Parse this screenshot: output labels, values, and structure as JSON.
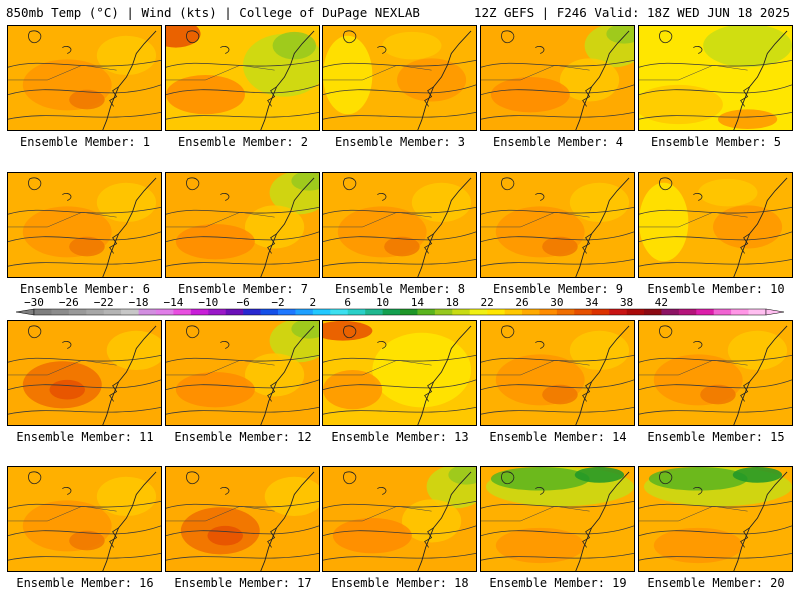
{
  "header": {
    "left": "850mb Temp (°C) | Wind (kts) | College of DuPage NEXLAB",
    "right": "12Z GEFS | F246 Valid: 18Z WED JUN 18 2025"
  },
  "panel_label_prefix": "Ensemble Member: ",
  "members": [
    {
      "n": "1",
      "scheme": "orange"
    },
    {
      "n": "2",
      "scheme": "ne-green-nw-red"
    },
    {
      "n": "3",
      "scheme": "orange-yellow"
    },
    {
      "n": "4",
      "scheme": "ne-green"
    },
    {
      "n": "5",
      "scheme": "yellow-green"
    },
    {
      "n": "6",
      "scheme": "orange"
    },
    {
      "n": "7",
      "scheme": "ne-green"
    },
    {
      "n": "8",
      "scheme": "orange"
    },
    {
      "n": "9",
      "scheme": "orange"
    },
    {
      "n": "10",
      "scheme": "orange-yellow"
    },
    {
      "n": "11",
      "scheme": "red-center"
    },
    {
      "n": "12",
      "scheme": "ne-green"
    },
    {
      "n": "13",
      "scheme": "yellow-east"
    },
    {
      "n": "14",
      "scheme": "orange"
    },
    {
      "n": "15",
      "scheme": "orange"
    },
    {
      "n": "16",
      "scheme": "orange"
    },
    {
      "n": "17",
      "scheme": "red-center"
    },
    {
      "n": "18",
      "scheme": "ne-green"
    },
    {
      "n": "19",
      "scheme": "strong-green"
    },
    {
      "n": "20",
      "scheme": "strong-green"
    }
  ],
  "colorbar": {
    "labels": [
      "−30",
      "−26",
      "−22",
      "−18",
      "−14",
      "−10",
      "−6",
      "−2",
      "2",
      "6",
      "10",
      "14",
      "18",
      "22",
      "26",
      "30",
      "34",
      "38",
      "42"
    ],
    "colors": [
      "#7f7f7f",
      "#8c8c8c",
      "#9a9a9a",
      "#a7a7a7",
      "#b4b4b4",
      "#c7c7c7",
      "#d28ee0",
      "#e07ee8",
      "#e84fe0",
      "#c81ed8",
      "#9a18c8",
      "#6a10b8",
      "#2828d0",
      "#1450e8",
      "#1e78ff",
      "#1ea0ff",
      "#22c8ff",
      "#3ce0f0",
      "#2ad0c8",
      "#20b890",
      "#14a050",
      "#1e9628",
      "#5ab41e",
      "#96c81e",
      "#c8dc14",
      "#f0f014",
      "#ffe600",
      "#ffc800",
      "#ffaa00",
      "#ff8c00",
      "#f06e00",
      "#e65000",
      "#dc3200",
      "#c81414",
      "#aa0a0a",
      "#8c0a14",
      "#8c1464",
      "#b4147a",
      "#dc1eaa",
      "#f064d2",
      "#ff96e6",
      "#ffbef0"
    ]
  }
}
